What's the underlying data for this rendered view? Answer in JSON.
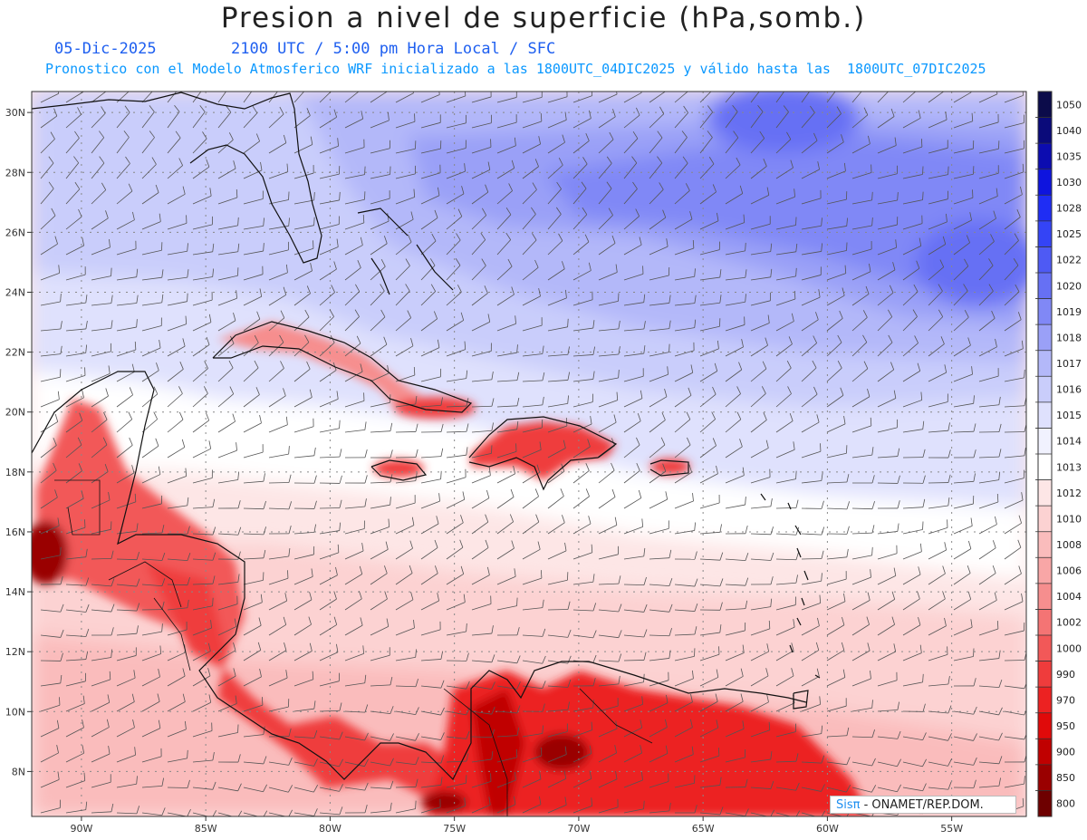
{
  "title": "Presion a nivel de superficie (hPa,somb.)",
  "date": "05-Dic-2025",
  "valid_time": "2100 UTC / 5:00 pm Hora Local / SFC",
  "forecast_note": "Pronostico con el Modelo Atmosferico WRF inicializado a las 1800UTC_04DIC2025 y válido hasta las  1800UTC_07DIC2025",
  "credit": {
    "brand": "Sisπ",
    "text": " - ONAMET/REP.DOM."
  },
  "map": {
    "lon_range": [
      -92,
      -52
    ],
    "lat_range": [
      6.5,
      30.7
    ],
    "lon_ticks": [
      {
        "value": -90,
        "label": "90W"
      },
      {
        "value": -85,
        "label": "85W"
      },
      {
        "value": -80,
        "label": "80W"
      },
      {
        "value": -75,
        "label": "75W"
      },
      {
        "value": -70,
        "label": "70W"
      },
      {
        "value": -65,
        "label": "65W"
      },
      {
        "value": -60,
        "label": "60W"
      },
      {
        "value": -55,
        "label": "55W"
      }
    ],
    "lat_ticks": [
      {
        "value": 8,
        "label": "8N"
      },
      {
        "value": 10,
        "label": "10N"
      },
      {
        "value": 12,
        "label": "12N"
      },
      {
        "value": 14,
        "label": "14N"
      },
      {
        "value": 16,
        "label": "16N"
      },
      {
        "value": 18,
        "label": "18N"
      },
      {
        "value": 20,
        "label": "20N"
      },
      {
        "value": 22,
        "label": "22N"
      },
      {
        "value": 24,
        "label": "24N"
      },
      {
        "value": 26,
        "label": "26N"
      },
      {
        "value": 28,
        "label": "28N"
      },
      {
        "value": 30,
        "label": "30N"
      }
    ]
  },
  "colorbar": {
    "levels": [
      {
        "label": "1050",
        "color": "#0b0b4a"
      },
      {
        "label": "1040",
        "color": "#0a0a7a"
      },
      {
        "label": "1035",
        "color": "#0c0cb0"
      },
      {
        "label": "1030",
        "color": "#0e14de"
      },
      {
        "label": "1028",
        "color": "#1f2df4"
      },
      {
        "label": "1025",
        "color": "#3444f6"
      },
      {
        "label": "1022",
        "color": "#4e5af4"
      },
      {
        "label": "1020",
        "color": "#6670f4"
      },
      {
        "label": "1019",
        "color": "#8088f6"
      },
      {
        "label": "1018",
        "color": "#9aa0f7"
      },
      {
        "label": "1017",
        "color": "#b3b8f9"
      },
      {
        "label": "1016",
        "color": "#c9cdfb"
      },
      {
        "label": "1015",
        "color": "#dfe1fd"
      },
      {
        "label": "1014",
        "color": "#f1f2fe"
      },
      {
        "label": "1013",
        "color": "#ffffff"
      },
      {
        "label": "1012",
        "color": "#fde6e6"
      },
      {
        "label": "1010",
        "color": "#fcd2d2"
      },
      {
        "label": "1008",
        "color": "#fabcbc"
      },
      {
        "label": "1006",
        "color": "#f8a6a6"
      },
      {
        "label": "1004",
        "color": "#f68e8e"
      },
      {
        "label": "1002",
        "color": "#f47474"
      },
      {
        "label": "1000",
        "color": "#f25858"
      },
      {
        "label": "990",
        "color": "#ef3c3c"
      },
      {
        "label": "970",
        "color": "#ec2222"
      },
      {
        "label": "950",
        "color": "#e00a0a"
      },
      {
        "label": "900",
        "color": "#c00000"
      },
      {
        "label": "850",
        "color": "#9a0000"
      },
      {
        "label": "800",
        "color": "#6e0000"
      }
    ]
  }
}
